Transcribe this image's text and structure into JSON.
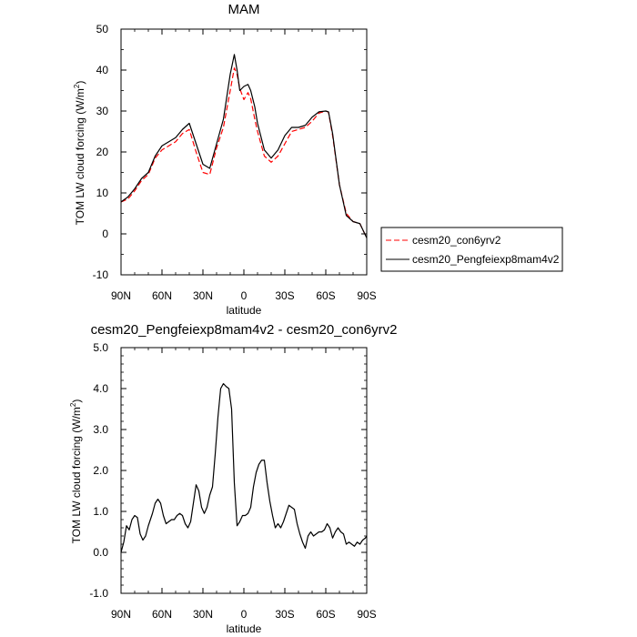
{
  "chart_data": [
    {
      "type": "line",
      "title": "MAM",
      "xlabel": "latitude",
      "ylabel_main": "TOM LW cloud forcing (W/m",
      "ylabel_sup": "2",
      "ylabel_close": ")",
      "xlim": [
        90,
        -90
      ],
      "ylim": [
        -10,
        50
      ],
      "yticks": [
        -10,
        0,
        10,
        20,
        30,
        40,
        50
      ],
      "ytick_labels": [
        "-10",
        "0",
        "10",
        "20",
        "30",
        "40",
        "50"
      ],
      "xticks": [
        90,
        60,
        30,
        0,
        -30,
        -60,
        -90
      ],
      "xtick_labels": [
        "90N",
        "60N",
        "30N",
        "0",
        "30S",
        "60S",
        "90S"
      ],
      "legend_position": "outside-right",
      "series": [
        {
          "name": "cesm20_con6yrv2",
          "color": "#ff0000",
          "dash": "dashed",
          "x": [
            90,
            85,
            80,
            75,
            70,
            65,
            60,
            55,
            50,
            45,
            40,
            35,
            30,
            25,
            20,
            15,
            10,
            7,
            5,
            3,
            0,
            -3,
            -5,
            -8,
            -10,
            -15,
            -20,
            -25,
            -30,
            -35,
            -40,
            -45,
            -50,
            -55,
            -60,
            -62,
            -65,
            -70,
            -75,
            -80,
            -85,
            -90
          ],
          "y": [
            7.8,
            8.5,
            10.5,
            13,
            14.5,
            18.5,
            20.5,
            21.5,
            22.5,
            24.5,
            25.5,
            20,
            15,
            14.5,
            21,
            26,
            35,
            40.5,
            39,
            35.5,
            32.8,
            34.5,
            33,
            28,
            25,
            19,
            17.5,
            19,
            22,
            25,
            25.5,
            26,
            27.5,
            29.5,
            30,
            29.7,
            24,
            12,
            5,
            3,
            2.5,
            -1
          ]
        },
        {
          "name": "cesm20_Pengfeiexp8mam4v2",
          "color": "#000000",
          "dash": "solid",
          "x": [
            90,
            85,
            80,
            75,
            70,
            65,
            60,
            55,
            50,
            45,
            40,
            35,
            30,
            25,
            20,
            15,
            10,
            7,
            5,
            3,
            0,
            -3,
            -5,
            -8,
            -10,
            -15,
            -20,
            -25,
            -30,
            -35,
            -40,
            -45,
            -50,
            -55,
            -60,
            -62,
            -65,
            -70,
            -75,
            -80,
            -85,
            -90
          ],
          "y": [
            7.8,
            9,
            11,
            13.5,
            15,
            19,
            21.5,
            22.5,
            23.5,
            25.5,
            27,
            22,
            17,
            16,
            22,
            28,
            39,
            43.8,
            40,
            35,
            36,
            36.5,
            35,
            31,
            27,
            20.5,
            18.5,
            20.5,
            24,
            26,
            26,
            26.5,
            28.5,
            29.8,
            30,
            29.8,
            24.5,
            12,
            4.5,
            3,
            2.5,
            -1
          ]
        }
      ]
    },
    {
      "type": "line",
      "title": "cesm20_Pengfeiexp8mam4v2 - cesm20_con6yrv2",
      "xlabel": "latitude",
      "ylabel_main": "TOM LW cloud forcing (W/m",
      "ylabel_sup": "2",
      "ylabel_close": ")",
      "xlim": [
        90,
        -90
      ],
      "ylim": [
        -1,
        5
      ],
      "yticks": [
        -1,
        0,
        1,
        2,
        3,
        4,
        5
      ],
      "ytick_labels": [
        "-1.0",
        "0.0",
        "1.0",
        "2.0",
        "3.0",
        "4.0",
        "5.0"
      ],
      "xticks": [
        90,
        60,
        30,
        0,
        -30,
        -60,
        -90
      ],
      "xtick_labels": [
        "90N",
        "60N",
        "30N",
        "0",
        "30S",
        "60S",
        "90S"
      ],
      "series": [
        {
          "color": "#000000",
          "dash": "solid",
          "x": [
            90,
            88,
            86,
            84,
            82,
            80,
            78,
            76,
            74,
            72,
            70,
            67,
            65,
            63,
            61,
            59,
            57,
            55,
            53,
            51,
            49,
            47,
            45,
            43,
            41,
            39,
            37,
            35,
            33,
            31,
            29,
            27,
            25,
            23,
            21,
            19,
            17,
            15,
            13,
            11,
            9,
            7,
            5,
            3,
            1,
            -1,
            -3,
            -5,
            -7,
            -9,
            -11,
            -13,
            -15,
            -17,
            -19,
            -21,
            -23,
            -25,
            -27,
            -29,
            -31,
            -33,
            -35,
            -37,
            -39,
            -41,
            -43,
            -45,
            -47,
            -49,
            -51,
            -53,
            -55,
            -57,
            -59,
            -61,
            -63,
            -65,
            -67,
            -69,
            -71,
            -73,
            -75,
            -77,
            -79,
            -81,
            -83,
            -85,
            -87,
            -89,
            -90
          ],
          "y": [
            0.0,
            0.25,
            0.65,
            0.55,
            0.8,
            0.9,
            0.85,
            0.45,
            0.3,
            0.4,
            0.65,
            0.95,
            1.2,
            1.3,
            1.2,
            0.9,
            0.7,
            0.75,
            0.8,
            0.8,
            0.9,
            0.95,
            0.9,
            0.7,
            0.6,
            0.75,
            1.2,
            1.65,
            1.5,
            1.1,
            0.95,
            1.1,
            1.4,
            1.6,
            2.4,
            3.3,
            4.0,
            4.12,
            4.05,
            4.0,
            3.5,
            1.7,
            0.65,
            0.75,
            0.9,
            0.9,
            0.95,
            1.1,
            1.6,
            1.95,
            2.15,
            2.25,
            2.25,
            1.7,
            1.25,
            0.9,
            0.6,
            0.7,
            0.6,
            0.75,
            0.95,
            1.15,
            1.1,
            1.05,
            0.7,
            0.45,
            0.25,
            0.1,
            0.4,
            0.5,
            0.4,
            0.45,
            0.5,
            0.5,
            0.55,
            0.7,
            0.6,
            0.35,
            0.5,
            0.6,
            0.5,
            0.45,
            0.2,
            0.25,
            0.2,
            0.15,
            0.25,
            0.2,
            0.3,
            0.35,
            0.4
          ]
        }
      ]
    }
  ]
}
